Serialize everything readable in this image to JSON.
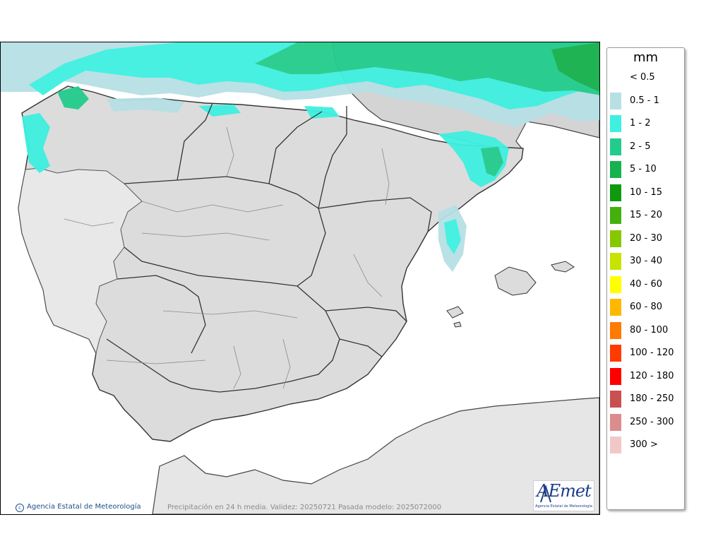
{
  "legend": {
    "unit": "mm",
    "items": [
      {
        "label": "< 0.5",
        "color": "#ffffff"
      },
      {
        "label": "0.5 - 1",
        "color": "#b7e0e4"
      },
      {
        "label": "1 - 2",
        "color": "#3ff0e0"
      },
      {
        "label": "2 - 5",
        "color": "#23cc8c"
      },
      {
        "label": "5 - 10",
        "color": "#16b24e"
      },
      {
        "label": "10 - 15",
        "color": "#0e9a0e"
      },
      {
        "label": "15 - 20",
        "color": "#44b00c"
      },
      {
        "label": "20 - 30",
        "color": "#86c800"
      },
      {
        "label": "30 - 40",
        "color": "#c6e400"
      },
      {
        "label": "40 - 60",
        "color": "#ffff00"
      },
      {
        "label": "60 - 80",
        "color": "#ffb800"
      },
      {
        "label": "80 - 100",
        "color": "#ff7a00"
      },
      {
        "label": "100 - 120",
        "color": "#ff3b00"
      },
      {
        "label": "120 - 180",
        "color": "#ff0000"
      },
      {
        "label": "180 - 250",
        "color": "#c85050"
      },
      {
        "label": "250 - 300",
        "color": "#dc8c8c"
      },
      {
        "label": "300 >",
        "color": "#f0c8c8"
      }
    ]
  },
  "credit": "Agencia Estatal de Meteorología",
  "caption": "Precipitación en 24 h media. Validez: 20250721 Pasada modelo: 2025072000",
  "logo": {
    "text": "AEmet",
    "subtitle": "Agencia Estatal de Meteorología"
  },
  "colors": {
    "land": "#dcdcdc",
    "sea": "#ffffff",
    "border": "#333333",
    "provinces": "#8a8a8a"
  }
}
